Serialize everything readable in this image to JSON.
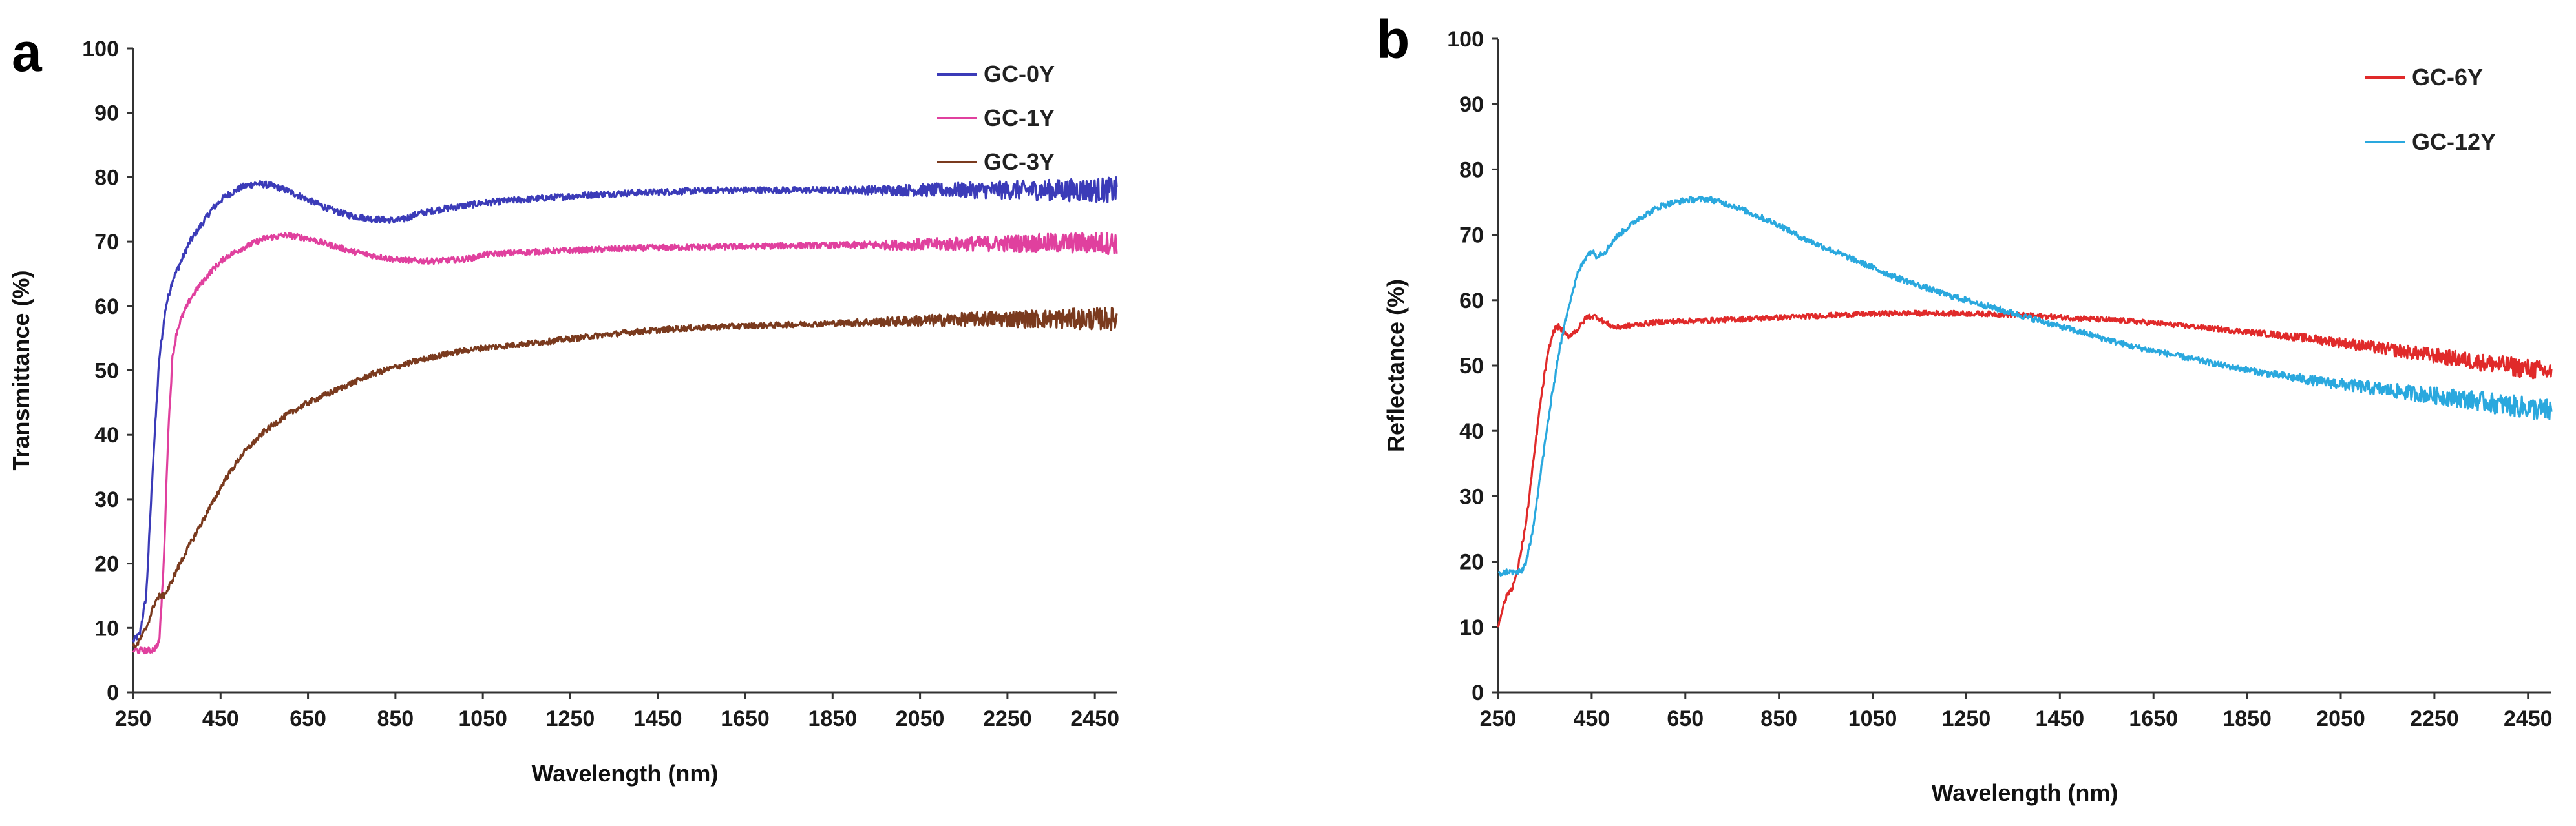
{
  "chart_data": [
    {
      "type": "line",
      "panel_label": "a",
      "title": "",
      "xlabel": "Wavelength (nm)",
      "ylabel": "Transmittance (%)",
      "xlim": [
        250,
        2500
      ],
      "ylim": [
        0,
        100
      ],
      "xticks": [
        250,
        450,
        650,
        850,
        1050,
        1250,
        1450,
        1650,
        1850,
        2050,
        2250,
        2450
      ],
      "yticks": [
        0,
        10,
        20,
        30,
        40,
        50,
        60,
        70,
        80,
        90,
        100
      ],
      "grid": false,
      "legend_position": "top-right",
      "series": [
        {
          "name": "GC-0Y",
          "color": "#3b3bb8",
          "noise": 0.5,
          "x": [
            250,
            265,
            280,
            295,
            310,
            325,
            340,
            360,
            380,
            400,
            430,
            460,
            500,
            530,
            560,
            600,
            650,
            700,
            750,
            800,
            850,
            870,
            900,
            950,
            1000,
            1050,
            1100,
            1200,
            1300,
            1400,
            1500,
            1600,
            1700,
            1800,
            1900,
            2000,
            2100,
            2200,
            2300,
            2400,
            2500
          ],
          "y": [
            8,
            9,
            15,
            35,
            52,
            60,
            64,
            67,
            70,
            72,
            75,
            77,
            78.5,
            79,
            78.8,
            78,
            76.5,
            75,
            74,
            73.5,
            73.3,
            73.5,
            74.3,
            75,
            75.5,
            76,
            76.3,
            76.8,
            77.3,
            77.6,
            77.8,
            78,
            78,
            78,
            78,
            78,
            78,
            78,
            78,
            78,
            78
          ]
        },
        {
          "name": "GC-1Y",
          "color": "#e0409e",
          "noise": 0.45,
          "x": [
            250,
            270,
            290,
            300,
            310,
            320,
            330,
            340,
            350,
            360,
            380,
            400,
            430,
            460,
            500,
            550,
            600,
            650,
            700,
            750,
            800,
            850,
            900,
            950,
            1000,
            1030,
            1050,
            1100,
            1200,
            1400,
            1600,
            1800,
            2000,
            2200,
            2400,
            2500
          ],
          "y": [
            6.5,
            6.5,
            6.5,
            6.8,
            8,
            20,
            40,
            52,
            56,
            58,
            61,
            63,
            65.5,
            67.5,
            69,
            70.5,
            71,
            70.5,
            69.5,
            68.5,
            67.8,
            67.2,
            67,
            67,
            67.2,
            67.5,
            68,
            68.2,
            68.5,
            69,
            69.2,
            69.4,
            69.5,
            69.7,
            69.8,
            69.8
          ]
        },
        {
          "name": "GC-3Y",
          "color": "#7a3a1e",
          "noise": 0.45,
          "x": [
            250,
            260,
            280,
            300,
            310,
            320,
            330,
            340,
            350,
            380,
            420,
            460,
            500,
            550,
            600,
            650,
            700,
            750,
            800,
            850,
            900,
            950,
            1000,
            1050,
            1100,
            1200,
            1300,
            1400,
            1500,
            1600,
            1700,
            1800,
            1900,
            2000,
            2100,
            2200,
            2300,
            2400,
            2500
          ],
          "y": [
            7,
            7.5,
            10,
            14,
            15,
            15,
            16,
            17.5,
            19,
            23,
            28,
            33,
            37,
            40.5,
            43,
            45,
            46.5,
            48,
            49.5,
            50.5,
            51.5,
            52.3,
            53,
            53.5,
            53.8,
            54.5,
            55.3,
            56,
            56.5,
            56.8,
            57,
            57.2,
            57.4,
            57.6,
            57.8,
            58,
            58,
            58,
            58
          ]
        }
      ]
    },
    {
      "type": "line",
      "panel_label": "b",
      "title": "",
      "xlabel": "Wavelength (nm)",
      "ylabel": "Reflectance (%)",
      "xlim": [
        250,
        2500
      ],
      "ylim": [
        0,
        100
      ],
      "xticks": [
        250,
        450,
        650,
        850,
        1050,
        1250,
        1450,
        1650,
        1850,
        2050,
        2250,
        2450
      ],
      "yticks": [
        0,
        10,
        20,
        30,
        40,
        50,
        60,
        70,
        80,
        90,
        100
      ],
      "grid": false,
      "legend_position": "top-right",
      "series": [
        {
          "name": "GC-6Y",
          "color": "#e02a2a",
          "noise": 0.4,
          "x": [
            250,
            260,
            270,
            280,
            290,
            300,
            310,
            320,
            330,
            340,
            350,
            360,
            370,
            380,
            390,
            400,
            420,
            440,
            460,
            480,
            500,
            550,
            600,
            650,
            700,
            800,
            900,
            1000,
            1100,
            1200,
            1300,
            1400,
            1500,
            1600,
            1700,
            1800,
            1900,
            2000,
            2100,
            2200,
            2300,
            2400,
            2500
          ],
          "y": [
            10,
            13,
            15,
            16,
            18,
            22,
            26,
            32,
            38,
            44,
            49,
            53,
            55.5,
            56,
            55,
            54.5,
            55.5,
            57.5,
            57.5,
            56.5,
            55.8,
            56.3,
            56.7,
            56.8,
            56.9,
            57.2,
            57.5,
            57.8,
            58,
            58,
            57.9,
            57.6,
            57.2,
            56.8,
            56.2,
            55.5,
            54.8,
            54,
            53,
            52,
            51,
            50,
            49
          ]
        },
        {
          "name": "GC-12Y",
          "color": "#2aa8de",
          "noise": 0.45,
          "x": [
            250,
            270,
            290,
            300,
            310,
            320,
            330,
            340,
            350,
            360,
            380,
            400,
            420,
            440,
            450,
            460,
            480,
            500,
            550,
            600,
            650,
            700,
            750,
            800,
            850,
            900,
            1000,
            1100,
            1200,
            1300,
            1400,
            1500,
            1600,
            1700,
            1800,
            1900,
            2000,
            2100,
            2200,
            2300,
            2400,
            2500
          ],
          "y": [
            18,
            18.5,
            18.3,
            18.5,
            20,
            23,
            28,
            33,
            38,
            43,
            52,
            59,
            64,
            67,
            67.5,
            66.8,
            67.5,
            69.5,
            72.5,
            74.5,
            75.3,
            75.5,
            74.5,
            73,
            71.5,
            69.5,
            66.5,
            63.5,
            61,
            59,
            57,
            55,
            53,
            51.5,
            50,
            48.7,
            47.6,
            46.7,
            45.8,
            45,
            44,
            43
          ]
        }
      ]
    }
  ]
}
